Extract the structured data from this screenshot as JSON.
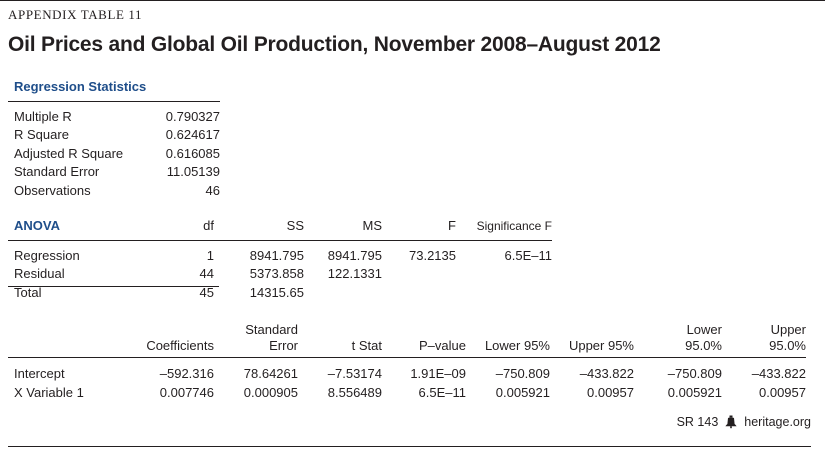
{
  "header": {
    "appendix_label": "APPENDIX TABLE 11",
    "title": "Oil Prices and Global Oil Production, November 2008–August 2012"
  },
  "regression_statistics": {
    "heading": "Regression Statistics",
    "rows": [
      {
        "label": "Multiple R",
        "value": "0.790327"
      },
      {
        "label": "R Square",
        "value": "0.624617"
      },
      {
        "label": "Adjusted R Square",
        "value": "0.616085"
      },
      {
        "label": "Standard Error",
        "value": "11.05139"
      },
      {
        "label": "Observations",
        "value": "46"
      }
    ]
  },
  "anova": {
    "heading": "ANOVA",
    "columns": [
      "df",
      "SS",
      "MS",
      "F",
      "Significance F"
    ],
    "rows": [
      {
        "label": "Regression",
        "df": "1",
        "ss": "8941.795",
        "ms": "8941.795",
        "f": "73.2135",
        "sig": "6.5E–11"
      },
      {
        "label": "Residual",
        "df": "44",
        "ss": "5373.858",
        "ms": "122.1331",
        "f": "",
        "sig": ""
      },
      {
        "label": "Total",
        "df": "45",
        "ss": "14315.65",
        "ms": "",
        "f": "",
        "sig": ""
      }
    ]
  },
  "coefficients": {
    "columns": {
      "coef": "Coefficients",
      "se_1": "Standard",
      "se_2": "Error",
      "t": "t Stat",
      "p": "P–value",
      "lower95": "Lower 95%",
      "upper95": "Upper 95%",
      "lower950_1": "Lower",
      "lower950_2": "95.0%",
      "upper950_1": "Upper",
      "upper950_2": "95.0%"
    },
    "rows": [
      {
        "label": "Intercept",
        "coef": "–592.316",
        "se": "78.64261",
        "t": "–7.53174",
        "p": "1.91E–09",
        "lower95": "–750.809",
        "upper95": "–433.822",
        "lower950": "–750.809",
        "upper950": "–433.822"
      },
      {
        "label": "X Variable 1",
        "coef": "0.007746",
        "se": "0.000905",
        "t": "8.556489",
        "p": "6.5E–11",
        "lower95": "0.005921",
        "upper95": "0.00957",
        "lower950": "0.005921",
        "upper950": "0.00957"
      }
    ]
  },
  "footer": {
    "report": "SR 143",
    "site": "heritage.org",
    "icon": "liberty-bell-icon"
  }
}
